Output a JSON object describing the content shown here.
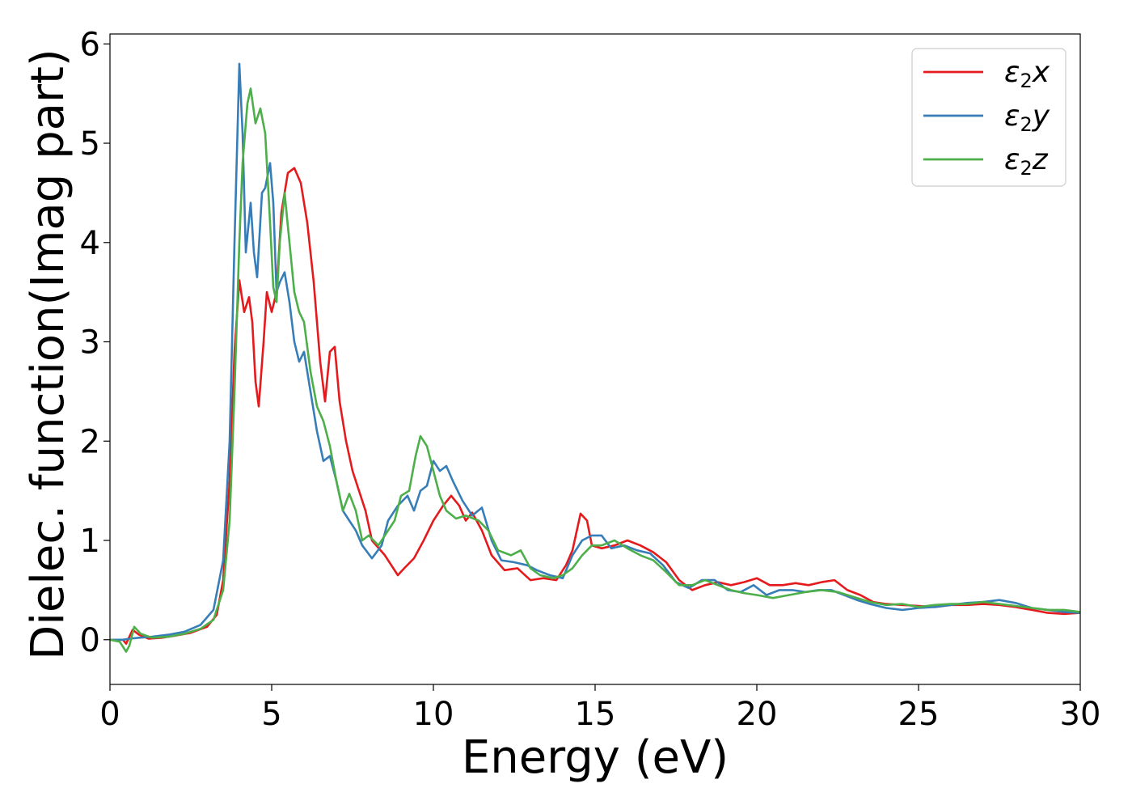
{
  "chart_data": {
    "type": "line",
    "title": "",
    "xlabel": "Energy (eV)",
    "ylabel": "Dielec. function(Imag part)",
    "xlim": [
      0,
      30
    ],
    "ylim": [
      -0.45,
      6.1
    ],
    "xticks": [
      0,
      5,
      10,
      15,
      20,
      25,
      30
    ],
    "yticks": [
      0,
      1,
      2,
      3,
      4,
      5,
      6
    ],
    "grid": false,
    "legend_position": "top-right",
    "series": [
      {
        "name": "ε2x",
        "legend_base": "ε",
        "legend_sub": "2",
        "legend_var": "x",
        "color": "#e41a1c",
        "points": [
          [
            0,
            0
          ],
          [
            0.4,
            0
          ],
          [
            0.5,
            -0.04
          ],
          [
            0.7,
            0.1
          ],
          [
            0.9,
            0.05
          ],
          [
            1.2,
            0.01
          ],
          [
            1.6,
            0.02
          ],
          [
            2.0,
            0.04
          ],
          [
            2.5,
            0.07
          ],
          [
            3.0,
            0.13
          ],
          [
            3.3,
            0.25
          ],
          [
            3.5,
            0.6
          ],
          [
            3.7,
            1.6
          ],
          [
            3.85,
            2.9
          ],
          [
            4.0,
            3.62
          ],
          [
            4.15,
            3.3
          ],
          [
            4.3,
            3.45
          ],
          [
            4.4,
            3.2
          ],
          [
            4.5,
            2.6
          ],
          [
            4.6,
            2.35
          ],
          [
            4.75,
            3.0
          ],
          [
            4.85,
            3.5
          ],
          [
            5.0,
            3.3
          ],
          [
            5.15,
            3.5
          ],
          [
            5.3,
            4.3
          ],
          [
            5.5,
            4.7
          ],
          [
            5.7,
            4.75
          ],
          [
            5.9,
            4.6
          ],
          [
            6.1,
            4.2
          ],
          [
            6.3,
            3.6
          ],
          [
            6.5,
            2.8
          ],
          [
            6.65,
            2.4
          ],
          [
            6.8,
            2.9
          ],
          [
            6.95,
            2.95
          ],
          [
            7.1,
            2.4
          ],
          [
            7.3,
            2.0
          ],
          [
            7.5,
            1.7
          ],
          [
            7.7,
            1.5
          ],
          [
            7.9,
            1.3
          ],
          [
            8.1,
            1.0
          ],
          [
            8.5,
            0.85
          ],
          [
            8.9,
            0.65
          ],
          [
            9.1,
            0.72
          ],
          [
            9.4,
            0.82
          ],
          [
            9.7,
            1.0
          ],
          [
            10.0,
            1.2
          ],
          [
            10.3,
            1.35
          ],
          [
            10.55,
            1.45
          ],
          [
            10.8,
            1.35
          ],
          [
            11.0,
            1.2
          ],
          [
            11.2,
            1.28
          ],
          [
            11.5,
            1.1
          ],
          [
            11.8,
            0.85
          ],
          [
            12.2,
            0.7
          ],
          [
            12.6,
            0.72
          ],
          [
            13.0,
            0.6
          ],
          [
            13.4,
            0.62
          ],
          [
            13.8,
            0.6
          ],
          [
            14.1,
            0.75
          ],
          [
            14.3,
            0.9
          ],
          [
            14.55,
            1.27
          ],
          [
            14.75,
            1.2
          ],
          [
            14.9,
            0.95
          ],
          [
            15.2,
            0.92
          ],
          [
            15.6,
            0.95
          ],
          [
            16.0,
            1.0
          ],
          [
            16.4,
            0.95
          ],
          [
            16.8,
            0.88
          ],
          [
            17.2,
            0.78
          ],
          [
            17.6,
            0.6
          ],
          [
            18.0,
            0.5
          ],
          [
            18.4,
            0.55
          ],
          [
            18.8,
            0.58
          ],
          [
            19.2,
            0.55
          ],
          [
            19.6,
            0.58
          ],
          [
            20.0,
            0.62
          ],
          [
            20.4,
            0.55
          ],
          [
            20.8,
            0.55
          ],
          [
            21.2,
            0.57
          ],
          [
            21.6,
            0.55
          ],
          [
            22.0,
            0.58
          ],
          [
            22.4,
            0.6
          ],
          [
            22.8,
            0.5
          ],
          [
            23.2,
            0.45
          ],
          [
            23.6,
            0.38
          ],
          [
            24.0,
            0.36
          ],
          [
            24.5,
            0.35
          ],
          [
            25.0,
            0.34
          ],
          [
            25.5,
            0.33
          ],
          [
            26.0,
            0.35
          ],
          [
            26.5,
            0.35
          ],
          [
            27.0,
            0.36
          ],
          [
            27.5,
            0.35
          ],
          [
            28.0,
            0.33
          ],
          [
            28.5,
            0.3
          ],
          [
            29.0,
            0.27
          ],
          [
            29.5,
            0.26
          ],
          [
            30.0,
            0.27
          ]
        ]
      },
      {
        "name": "ε2y",
        "legend_base": "ε",
        "legend_sub": "2",
        "legend_var": "y",
        "color": "#377eb8",
        "points": [
          [
            0,
            0
          ],
          [
            0.4,
            0
          ],
          [
            0.6,
            0.01
          ],
          [
            0.9,
            0.02
          ],
          [
            1.3,
            0.03
          ],
          [
            1.8,
            0.05
          ],
          [
            2.3,
            0.08
          ],
          [
            2.8,
            0.15
          ],
          [
            3.2,
            0.3
          ],
          [
            3.5,
            0.8
          ],
          [
            3.7,
            2.0
          ],
          [
            3.85,
            4.0
          ],
          [
            4.0,
            5.8
          ],
          [
            4.1,
            5.1
          ],
          [
            4.2,
            3.9
          ],
          [
            4.35,
            4.4
          ],
          [
            4.45,
            3.9
          ],
          [
            4.55,
            3.65
          ],
          [
            4.7,
            4.5
          ],
          [
            4.8,
            4.55
          ],
          [
            4.95,
            4.8
          ],
          [
            5.05,
            4.4
          ],
          [
            5.15,
            3.5
          ],
          [
            5.25,
            3.6
          ],
          [
            5.4,
            3.7
          ],
          [
            5.55,
            3.4
          ],
          [
            5.7,
            3.0
          ],
          [
            5.85,
            2.8
          ],
          [
            6.0,
            2.9
          ],
          [
            6.2,
            2.5
          ],
          [
            6.4,
            2.1
          ],
          [
            6.6,
            1.8
          ],
          [
            6.8,
            1.85
          ],
          [
            7.0,
            1.6
          ],
          [
            7.2,
            1.3
          ],
          [
            7.4,
            1.2
          ],
          [
            7.6,
            1.1
          ],
          [
            7.8,
            0.95
          ],
          [
            8.1,
            0.82
          ],
          [
            8.4,
            0.95
          ],
          [
            8.6,
            1.2
          ],
          [
            8.9,
            1.35
          ],
          [
            9.2,
            1.45
          ],
          [
            9.4,
            1.3
          ],
          [
            9.6,
            1.5
          ],
          [
            9.8,
            1.55
          ],
          [
            10.0,
            1.8
          ],
          [
            10.2,
            1.7
          ],
          [
            10.4,
            1.75
          ],
          [
            10.6,
            1.6
          ],
          [
            10.9,
            1.4
          ],
          [
            11.2,
            1.25
          ],
          [
            11.5,
            1.33
          ],
          [
            11.8,
            1.0
          ],
          [
            12.1,
            0.8
          ],
          [
            12.5,
            0.78
          ],
          [
            12.9,
            0.75
          ],
          [
            13.2,
            0.7
          ],
          [
            13.6,
            0.65
          ],
          [
            14.0,
            0.62
          ],
          [
            14.3,
            0.85
          ],
          [
            14.6,
            1.0
          ],
          [
            14.9,
            1.05
          ],
          [
            15.2,
            1.05
          ],
          [
            15.5,
            0.92
          ],
          [
            15.9,
            0.95
          ],
          [
            16.3,
            0.9
          ],
          [
            16.7,
            0.87
          ],
          [
            17.1,
            0.75
          ],
          [
            17.5,
            0.58
          ],
          [
            17.9,
            0.52
          ],
          [
            18.3,
            0.6
          ],
          [
            18.7,
            0.6
          ],
          [
            19.1,
            0.5
          ],
          [
            19.5,
            0.48
          ],
          [
            19.9,
            0.55
          ],
          [
            20.3,
            0.45
          ],
          [
            20.7,
            0.5
          ],
          [
            21.1,
            0.5
          ],
          [
            21.5,
            0.48
          ],
          [
            21.9,
            0.5
          ],
          [
            22.3,
            0.5
          ],
          [
            22.7,
            0.45
          ],
          [
            23.1,
            0.4
          ],
          [
            23.5,
            0.36
          ],
          [
            24.0,
            0.32
          ],
          [
            24.5,
            0.3
          ],
          [
            25.0,
            0.32
          ],
          [
            25.5,
            0.33
          ],
          [
            26.0,
            0.35
          ],
          [
            26.5,
            0.37
          ],
          [
            27.0,
            0.38
          ],
          [
            27.5,
            0.4
          ],
          [
            28.0,
            0.37
          ],
          [
            28.5,
            0.32
          ],
          [
            29.0,
            0.3
          ],
          [
            29.5,
            0.28
          ],
          [
            30.0,
            0.27
          ]
        ]
      },
      {
        "name": "ε2z",
        "legend_base": "ε",
        "legend_sub": "2",
        "legend_var": "z",
        "color": "#4daf4a",
        "points": [
          [
            0,
            0
          ],
          [
            0.3,
            -0.02
          ],
          [
            0.5,
            -0.12
          ],
          [
            0.6,
            -0.06
          ],
          [
            0.75,
            0.13
          ],
          [
            0.95,
            0.06
          ],
          [
            1.3,
            0.02
          ],
          [
            1.8,
            0.03
          ],
          [
            2.3,
            0.06
          ],
          [
            2.8,
            0.11
          ],
          [
            3.2,
            0.2
          ],
          [
            3.5,
            0.5
          ],
          [
            3.7,
            1.2
          ],
          [
            3.85,
            2.5
          ],
          [
            4.0,
            4.0
          ],
          [
            4.1,
            4.8
          ],
          [
            4.25,
            5.4
          ],
          [
            4.35,
            5.55
          ],
          [
            4.5,
            5.2
          ],
          [
            4.65,
            5.35
          ],
          [
            4.8,
            5.1
          ],
          [
            4.95,
            4.2
          ],
          [
            5.05,
            3.55
          ],
          [
            5.15,
            3.4
          ],
          [
            5.25,
            4.0
          ],
          [
            5.4,
            4.5
          ],
          [
            5.55,
            4.0
          ],
          [
            5.7,
            3.5
          ],
          [
            5.85,
            3.3
          ],
          [
            6.0,
            3.2
          ],
          [
            6.2,
            2.7
          ],
          [
            6.4,
            2.35
          ],
          [
            6.6,
            2.2
          ],
          [
            6.8,
            1.95
          ],
          [
            7.0,
            1.6
          ],
          [
            7.2,
            1.3
          ],
          [
            7.4,
            1.47
          ],
          [
            7.6,
            1.3
          ],
          [
            7.8,
            1.0
          ],
          [
            8.0,
            1.05
          ],
          [
            8.3,
            0.95
          ],
          [
            8.6,
            1.1
          ],
          [
            8.8,
            1.2
          ],
          [
            9.0,
            1.45
          ],
          [
            9.25,
            1.5
          ],
          [
            9.45,
            1.85
          ],
          [
            9.6,
            2.05
          ],
          [
            9.8,
            1.95
          ],
          [
            10.0,
            1.7
          ],
          [
            10.2,
            1.45
          ],
          [
            10.4,
            1.3
          ],
          [
            10.7,
            1.22
          ],
          [
            11.0,
            1.25
          ],
          [
            11.4,
            1.2
          ],
          [
            11.7,
            1.1
          ],
          [
            12.0,
            0.9
          ],
          [
            12.4,
            0.85
          ],
          [
            12.7,
            0.9
          ],
          [
            13.0,
            0.72
          ],
          [
            13.3,
            0.65
          ],
          [
            13.7,
            0.62
          ],
          [
            14.0,
            0.65
          ],
          [
            14.3,
            0.72
          ],
          [
            14.6,
            0.85
          ],
          [
            14.9,
            0.95
          ],
          [
            15.2,
            0.95
          ],
          [
            15.6,
            1.0
          ],
          [
            16.0,
            0.92
          ],
          [
            16.4,
            0.85
          ],
          [
            16.8,
            0.8
          ],
          [
            17.2,
            0.68
          ],
          [
            17.6,
            0.55
          ],
          [
            18.0,
            0.55
          ],
          [
            18.4,
            0.6
          ],
          [
            18.8,
            0.55
          ],
          [
            19.2,
            0.5
          ],
          [
            19.6,
            0.47
          ],
          [
            20.0,
            0.45
          ],
          [
            20.5,
            0.42
          ],
          [
            21.0,
            0.45
          ],
          [
            21.5,
            0.48
          ],
          [
            22.0,
            0.5
          ],
          [
            22.5,
            0.48
          ],
          [
            23.0,
            0.43
          ],
          [
            23.5,
            0.38
          ],
          [
            24.0,
            0.35
          ],
          [
            24.5,
            0.36
          ],
          [
            25.0,
            0.33
          ],
          [
            25.5,
            0.35
          ],
          [
            26.0,
            0.36
          ],
          [
            26.5,
            0.36
          ],
          [
            27.0,
            0.38
          ],
          [
            27.5,
            0.36
          ],
          [
            28.0,
            0.34
          ],
          [
            28.5,
            0.32
          ],
          [
            29.0,
            0.3
          ],
          [
            29.5,
            0.3
          ],
          [
            30.0,
            0.28
          ]
        ]
      }
    ]
  }
}
